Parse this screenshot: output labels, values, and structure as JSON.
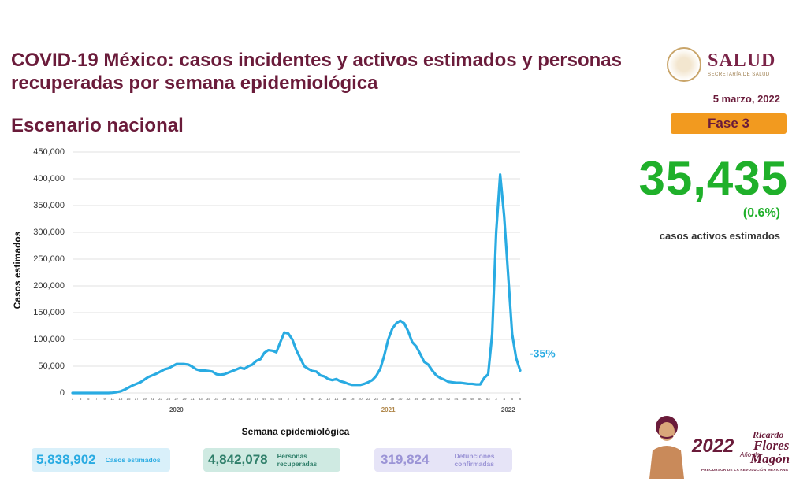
{
  "chart_data": {
    "type": "line",
    "title": "COVID-19 México: casos incidentes y activos estimados y personas recuperadas por semana epidemiológica",
    "subtitle": "Escenario nacional",
    "y_label": "Casos estimados",
    "x_label": "Semana epidemiológica",
    "x_groups": [
      "2020",
      "2021",
      "2022"
    ],
    "categories": [
      "1",
      null,
      "3",
      null,
      "5",
      null,
      "7",
      null,
      "9",
      null,
      "11",
      null,
      "13",
      null,
      "15",
      null,
      "17",
      null,
      "19",
      null,
      "21",
      null,
      "23",
      null,
      "25",
      null,
      "27",
      null,
      "29",
      null,
      "31",
      null,
      "33",
      null,
      "35",
      null,
      "37",
      null,
      "39",
      null,
      "41",
      null,
      "43",
      null,
      "45",
      null,
      "47",
      null,
      "49",
      null,
      "51",
      null,
      "53",
      null,
      "2",
      null,
      "4",
      null,
      "6",
      null,
      "8",
      null,
      "10",
      null,
      "12",
      null,
      "14",
      null,
      "16",
      null,
      "18",
      null,
      "20",
      null,
      "22",
      null,
      "24",
      null,
      "26",
      null,
      "28",
      null,
      "30",
      null,
      "32",
      null,
      "34",
      null,
      "36",
      null,
      "38",
      null,
      "40",
      null,
      "42",
      null,
      "44",
      null,
      "46",
      null,
      "48",
      null,
      "50",
      null,
      "52",
      null,
      "2",
      null,
      "4",
      null,
      "6",
      null,
      "8"
    ],
    "series": [
      {
        "name": "Casos estimados",
        "color": "#29abe2",
        "values": [
          0,
          0,
          0,
          0,
          0,
          0,
          0,
          0,
          0,
          0,
          500,
          1500,
          3000,
          6000,
          10000,
          14000,
          17000,
          20000,
          25000,
          30000,
          33000,
          36000,
          40000,
          44000,
          46000,
          50000,
          54000,
          54000,
          54000,
          53000,
          49000,
          44000,
          42000,
          42000,
          41000,
          40000,
          35000,
          34000,
          35000,
          38000,
          41000,
          44000,
          47000,
          45000,
          50000,
          53000,
          60000,
          63000,
          75000,
          80000,
          79000,
          76000,
          95000,
          113000,
          111000,
          100000,
          80000,
          65000,
          50000,
          45000,
          41000,
          40000,
          33000,
          31000,
          26000,
          24000,
          26000,
          22000,
          20000,
          17000,
          15000,
          15000,
          15000,
          17000,
          20000,
          24000,
          32000,
          45000,
          70000,
          100000,
          120000,
          130000,
          135000,
          130000,
          115000,
          95000,
          87000,
          73000,
          58000,
          53000,
          42000,
          33000,
          28000,
          25000,
          21000,
          20000,
          19000,
          19000,
          18000,
          17000,
          17000,
          16000,
          16000,
          28000,
          35000,
          110000,
          300000,
          408000,
          330000,
          220000,
          110000,
          65000,
          42000
        ]
      }
    ],
    "annotation": "-35%",
    "ylim": [
      0,
      450000
    ],
    "yticks": [
      0,
      {
        "value": 50000,
        "label": "50,000"
      },
      {
        "value": 100000,
        "label": "100,000"
      },
      {
        "value": 150000,
        "label": "150,000"
      },
      {
        "value": 200000,
        "label": "200,000"
      },
      {
        "value": 250000,
        "label": "250,000"
      },
      {
        "value": 300000,
        "label": "300,000"
      },
      {
        "value": 350000,
        "label": "350,000"
      },
      {
        "value": 400000,
        "label": "400,000"
      },
      {
        "value": 450000,
        "label": "450,000"
      }
    ],
    "grid": true
  },
  "header": {
    "logo": "SALUD",
    "logo_subtitle": "SECRETARÍA DE SALUD",
    "date": "5 marzo, 2022",
    "phase": "Fase 3"
  },
  "indicator": {
    "value": "35,435",
    "percent": "(0.6%)",
    "label": "casos activos estimados"
  },
  "totals": [
    {
      "value": "5,838,902",
      "label": "Casos estimados"
    },
    {
      "value": "4,842,078",
      "label": "Personas recuperadas"
    },
    {
      "value": "319,824",
      "label": "Defunciones confirmadas"
    }
  ],
  "footer_logo": {
    "year": "2022",
    "year_caption": "Año de",
    "first_name": "Ricardo",
    "surname1": "Flores",
    "surname2": "Magón",
    "caption": "PRECURSOR DE LA REVOLUCIÓN MEXICANA"
  }
}
